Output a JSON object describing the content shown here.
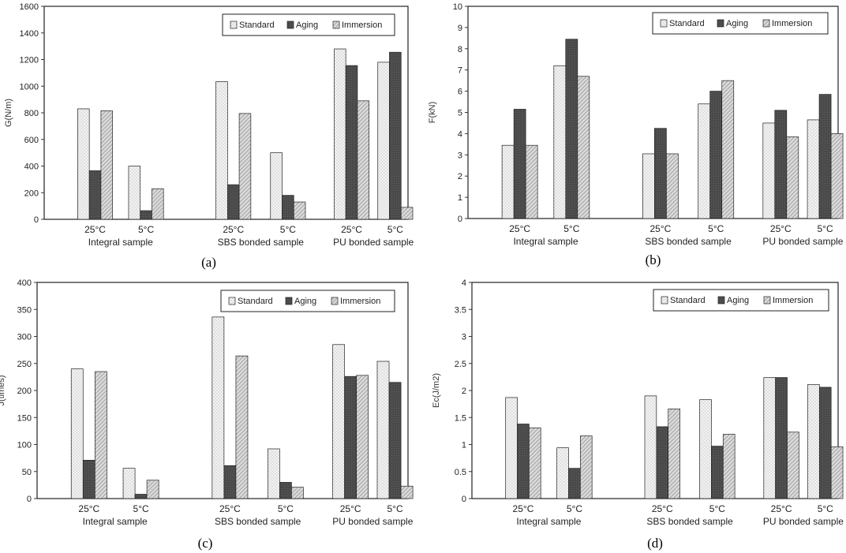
{
  "colors": {
    "standard": "#ededed",
    "aging": "#4a4a4a",
    "immersion": "#d0d0d0",
    "outline": "#222222"
  },
  "chart_data": [
    {
      "type": "bar",
      "panel_label": "(a)",
      "ylabel": "G(N/m)",
      "ylim": [
        0,
        1600
      ],
      "yticks": [
        "0",
        "200",
        "400",
        "600",
        "800",
        "1000",
        "1200",
        "1400",
        "1600"
      ],
      "ytick_values": [
        0,
        200,
        400,
        600,
        800,
        1000,
        1200,
        1400,
        1600
      ],
      "groups": [
        "Integral sample",
        "SBS bonded sample",
        "PU bonded sample"
      ],
      "categories": [
        "25°C",
        "5°C",
        "25°C",
        "5°C",
        "25°C",
        "5°C"
      ],
      "legend": [
        "Standard",
        "Aging",
        "Immersion"
      ],
      "series": [
        {
          "name": "Standard",
          "values": [
            830,
            400,
            1035,
            500,
            1280,
            1180
          ]
        },
        {
          "name": "Aging",
          "values": [
            365,
            65,
            260,
            180,
            1155,
            1255
          ]
        },
        {
          "name": "Immersion",
          "values": [
            815,
            230,
            795,
            130,
            890,
            90
          ]
        }
      ]
    },
    {
      "type": "bar",
      "panel_label": "(b)",
      "ylabel": "F(kN)",
      "ylim": [
        0,
        10
      ],
      "yticks": [
        "0",
        "1",
        "2",
        "3",
        "4",
        "5",
        "6",
        "7",
        "8",
        "9",
        "10"
      ],
      "ytick_values": [
        0,
        1,
        2,
        3,
        4,
        5,
        6,
        7,
        8,
        9,
        10
      ],
      "groups": [
        "Integral sample",
        "SBS bonded sample",
        "PU bonded sample"
      ],
      "categories": [
        "25°C",
        "5°C",
        "25°C",
        "5°C",
        "25°C",
        "5°C"
      ],
      "legend": [
        "Standard",
        "Aging",
        "Immersion"
      ],
      "series": [
        {
          "name": "Standard",
          "values": [
            3.45,
            7.2,
            3.05,
            5.4,
            4.5,
            4.65
          ]
        },
        {
          "name": "Aging",
          "values": [
            5.15,
            8.45,
            4.25,
            6.0,
            5.1,
            5.85
          ]
        },
        {
          "name": "Immersion",
          "values": [
            3.45,
            6.7,
            3.05,
            6.5,
            3.85,
            4.0
          ]
        }
      ]
    },
    {
      "type": "bar",
      "panel_label": "(c)",
      "ylabel": "J(times)",
      "ylim": [
        0,
        400
      ],
      "yticks": [
        "0",
        "50",
        "100",
        "150",
        "200",
        "250",
        "300",
        "350",
        "400"
      ],
      "ytick_values": [
        0,
        50,
        100,
        150,
        200,
        250,
        300,
        350,
        400
      ],
      "groups": [
        "Integral sample",
        "SBS bonded sample",
        "PU bonded sample"
      ],
      "categories": [
        "25°C",
        "5°C",
        "25°C",
        "5°C",
        "25°C",
        "5°C"
      ],
      "legend": [
        "Standard",
        "Aging",
        "Immersion"
      ],
      "series": [
        {
          "name": "Standard",
          "values": [
            240,
            56,
            336,
            92,
            285,
            254
          ]
        },
        {
          "name": "Aging",
          "values": [
            71,
            8,
            61,
            30,
            226,
            215
          ]
        },
        {
          "name": "Immersion",
          "values": [
            235,
            34,
            264,
            21,
            228,
            23
          ]
        }
      ]
    },
    {
      "type": "bar",
      "panel_label": "(d)",
      "ylabel": "Ec(J/m2)",
      "ylim": [
        0,
        4
      ],
      "yticks": [
        "0",
        "0.5",
        "1",
        "1.5",
        "2",
        "2.5",
        "3",
        "3.5",
        "4"
      ],
      "ytick_values": [
        0,
        0.5,
        1,
        1.5,
        2,
        2.5,
        3,
        3.5,
        4
      ],
      "groups": [
        "Integral sample",
        "SBS bonded sample",
        "PU bonded sample"
      ],
      "categories": [
        "25°C",
        "5°C",
        "25°C",
        "5°C",
        "25°C",
        "5°C"
      ],
      "legend": [
        "Standard",
        "Aging",
        "Immersion"
      ],
      "series": [
        {
          "name": "Standard",
          "values": [
            1.87,
            0.94,
            1.9,
            1.83,
            2.24,
            2.11
          ]
        },
        {
          "name": "Aging",
          "values": [
            1.38,
            0.56,
            1.33,
            0.97,
            2.24,
            2.06
          ]
        },
        {
          "name": "Immersion",
          "values": [
            1.31,
            1.16,
            1.66,
            1.19,
            1.23,
            0.96
          ]
        }
      ]
    }
  ]
}
